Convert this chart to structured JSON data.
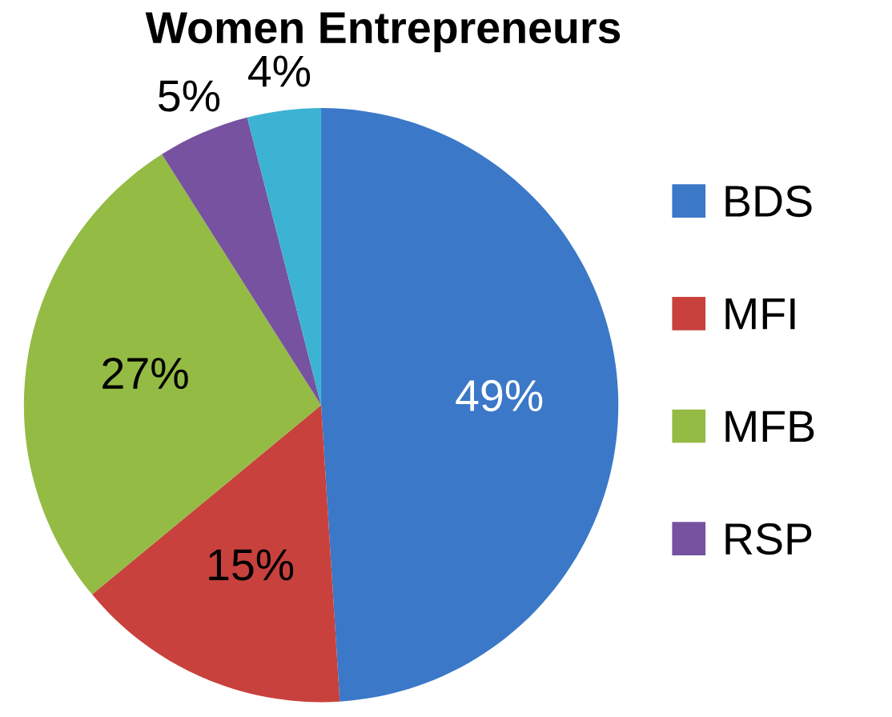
{
  "chart_data": {
    "type": "pie",
    "title": "Women Entrepreneurs",
    "categories": [
      "BDS",
      "MFI",
      "MFB",
      "RSP",
      null
    ],
    "values": [
      49,
      15,
      27,
      5,
      4
    ],
    "colors": [
      "#3b78c8",
      "#c8413d",
      "#94bb44",
      "#7752a0",
      "#3cb3d3"
    ],
    "value_labels": [
      "49%",
      "15%",
      "27%",
      "5%",
      "4%"
    ],
    "legend": "right"
  }
}
